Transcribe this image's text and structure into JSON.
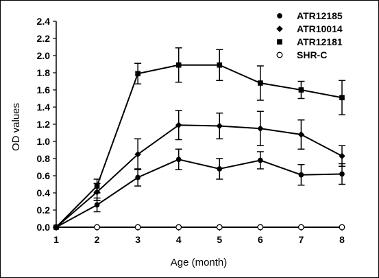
{
  "chart_data": {
    "type": "line",
    "title": "",
    "xlabel": "Age (month)",
    "ylabel": "OD values",
    "x": [
      1,
      2,
      3,
      4,
      5,
      6,
      7,
      8
    ],
    "xlim": [
      1,
      8
    ],
    "ylim": [
      0,
      2.4
    ],
    "yticks": [
      "0.0",
      "0.2",
      "0.4",
      "0.6",
      "0.8",
      "1.0",
      "1.2",
      "1.4",
      "1.6",
      "1.8",
      "2.0",
      "2.2",
      "2.4"
    ],
    "xticks": [
      "1",
      "2",
      "3",
      "4",
      "5",
      "6",
      "7",
      "8"
    ],
    "grid": false,
    "legend_position": "top-right",
    "series": [
      {
        "name": "ATR12185",
        "marker": "circle-filled",
        "values": [
          0.0,
          0.26,
          0.58,
          0.79,
          0.68,
          0.78,
          0.61,
          0.62
        ],
        "errors": [
          0.0,
          0.08,
          0.1,
          0.12,
          0.12,
          0.1,
          0.12,
          0.12
        ]
      },
      {
        "name": "ATR10014",
        "marker": "diamond-filled",
        "values": [
          0.0,
          0.41,
          0.85,
          1.19,
          1.18,
          1.15,
          1.08,
          0.83
        ],
        "errors": [
          0.0,
          0.1,
          0.18,
          0.17,
          0.15,
          0.2,
          0.17,
          0.12
        ]
      },
      {
        "name": "ATR12181",
        "marker": "square-filled",
        "values": [
          0.0,
          0.48,
          1.79,
          1.89,
          1.89,
          1.68,
          1.6,
          1.51
        ],
        "errors": [
          0.0,
          0.08,
          0.12,
          0.2,
          0.18,
          0.2,
          0.1,
          0.2
        ]
      },
      {
        "name": "SHR-C",
        "marker": "circle-open",
        "values": [
          0.0,
          0.0,
          0.0,
          0.0,
          0.0,
          0.0,
          0.0,
          0.0
        ],
        "errors": [
          0,
          0,
          0,
          0,
          0,
          0,
          0,
          0
        ]
      }
    ]
  }
}
